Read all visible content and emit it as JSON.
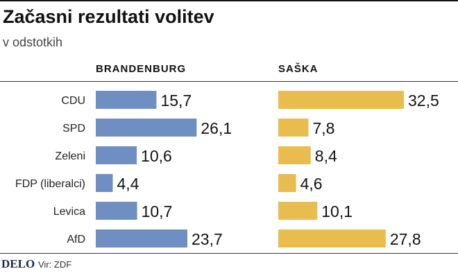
{
  "header": {
    "title": "Začasni rezultati volitev",
    "subtitle": "v odstotkih"
  },
  "footer": {
    "logo": "DELO",
    "source": "Vir: ZDF"
  },
  "colors": {
    "brandenburg": "#6f8fc2",
    "saska": "#e8bd4e"
  },
  "chart_data": {
    "type": "bar",
    "orientation": "horizontal",
    "categories": [
      "CDU",
      "SPD",
      "Zeleni",
      "FDP (liberalci)",
      "Levica",
      "AfD"
    ],
    "series": [
      {
        "name": "Brandenburg",
        "values": [
          15.7,
          26.1,
          10.6,
          4.4,
          10.7,
          23.7
        ]
      },
      {
        "name": "Saška",
        "values": [
          32.5,
          7.8,
          8.4,
          4.6,
          10.1,
          27.8
        ]
      }
    ],
    "value_labels": {
      "Brandenburg": [
        "15,7",
        "26,1",
        "10,6",
        "4,4",
        "10,7",
        "23,7"
      ],
      "Saška": [
        "32,5",
        "7,8",
        "8,4",
        "4,6",
        "10,1",
        "27,8"
      ]
    },
    "panel_titles": [
      "BRANDENBURG",
      "SAŠKA"
    ],
    "title": "Začasni rezultati volitev",
    "subtitle": "v odstotkih",
    "grid": false,
    "legend": "none"
  }
}
